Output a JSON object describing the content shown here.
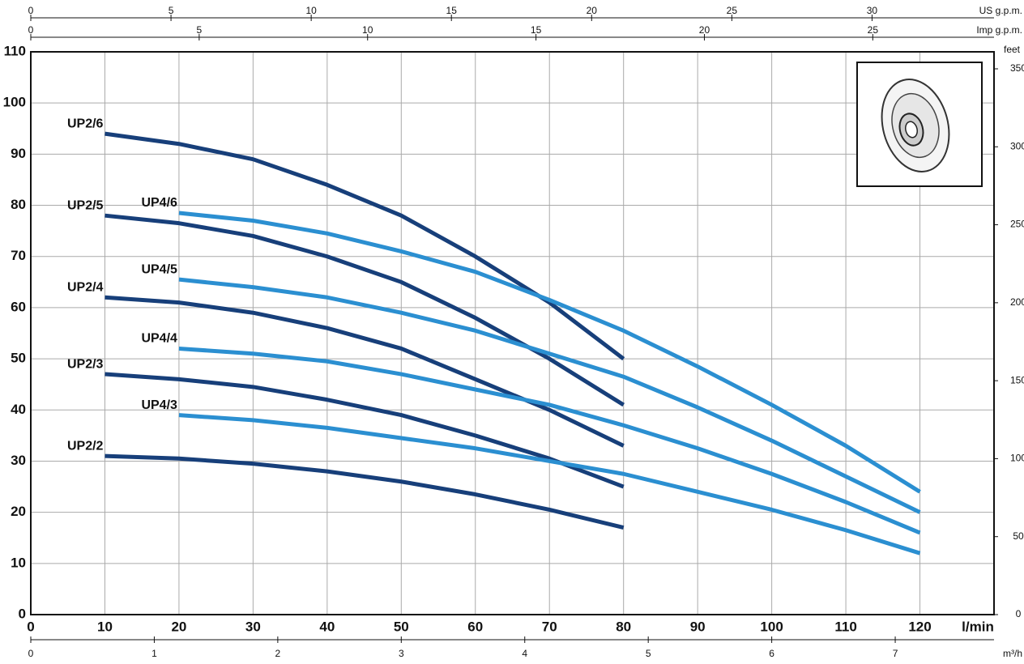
{
  "chart_data": {
    "type": "line",
    "xlabel": "l/min",
    "xlim": [
      0,
      130
    ],
    "xticks": [
      0,
      10,
      20,
      30,
      40,
      50,
      60,
      70,
      80,
      90,
      100,
      110,
      120
    ],
    "ylim": [
      0,
      110
    ],
    "yticks": [
      0,
      10,
      20,
      30,
      40,
      50,
      60,
      70,
      80,
      90,
      100,
      110
    ],
    "grid": true,
    "y2label": "feet",
    "y2lim": [
      0,
      360.9
    ],
    "y2ticks": [
      0,
      50,
      100,
      150,
      200,
      250,
      300,
      350
    ],
    "secondary_axes": [
      {
        "position": "top",
        "label": "US g.p.m.",
        "lim": [
          0,
          34.35
        ],
        "ticks": [
          0,
          5,
          10,
          15,
          20,
          25,
          30
        ]
      },
      {
        "position": "top",
        "label": "Imp g.p.m.",
        "lim": [
          0,
          28.6
        ],
        "ticks": [
          0,
          5,
          10,
          15,
          20,
          25
        ]
      },
      {
        "position": "bottom",
        "label": "m³/h",
        "lim": [
          0,
          7.8
        ],
        "ticks": [
          0,
          1,
          2,
          3,
          4,
          5,
          6,
          7
        ]
      }
    ],
    "series": [
      {
        "name": "UP2/6",
        "color": "#173f7a",
        "x": [
          10,
          20,
          30,
          40,
          50,
          60,
          70,
          80
        ],
        "values": [
          94,
          92,
          89,
          84,
          78,
          70,
          61,
          50
        ]
      },
      {
        "name": "UP2/5",
        "color": "#173f7a",
        "x": [
          10,
          20,
          30,
          40,
          50,
          60,
          70,
          80
        ],
        "values": [
          78,
          76.5,
          74,
          70,
          65,
          58,
          50,
          41
        ]
      },
      {
        "name": "UP2/4",
        "color": "#173f7a",
        "x": [
          10,
          20,
          30,
          40,
          50,
          60,
          70,
          80
        ],
        "values": [
          62,
          61,
          59,
          56,
          52,
          46,
          40,
          33
        ]
      },
      {
        "name": "UP2/3",
        "color": "#173f7a",
        "x": [
          10,
          20,
          30,
          40,
          50,
          60,
          70,
          80
        ],
        "values": [
          47,
          46,
          44.5,
          42,
          39,
          35,
          30.5,
          25
        ]
      },
      {
        "name": "UP2/2",
        "color": "#173f7a",
        "x": [
          10,
          20,
          30,
          40,
          50,
          60,
          70,
          80
        ],
        "values": [
          31,
          30.5,
          29.5,
          28,
          26,
          23.5,
          20.5,
          17
        ]
      },
      {
        "name": "UP4/6",
        "color": "#2b8fd1",
        "x": [
          20,
          30,
          40,
          50,
          60,
          70,
          80,
          90,
          100,
          110,
          120
        ],
        "values": [
          78.5,
          77,
          74.5,
          71,
          67,
          61.5,
          55.5,
          48.5,
          41,
          33,
          24
        ]
      },
      {
        "name": "UP4/5",
        "color": "#2b8fd1",
        "x": [
          20,
          30,
          40,
          50,
          60,
          70,
          80,
          90,
          100,
          110,
          120
        ],
        "values": [
          65.5,
          64,
          62,
          59,
          55.5,
          51,
          46.5,
          40.5,
          34,
          27,
          20
        ]
      },
      {
        "name": "UP4/4",
        "color": "#2b8fd1",
        "x": [
          20,
          30,
          40,
          50,
          60,
          70,
          80,
          90,
          100,
          110,
          120
        ],
        "values": [
          52,
          51,
          49.5,
          47,
          44,
          41,
          37,
          32.5,
          27.5,
          22,
          16
        ]
      },
      {
        "name": "UP4/3",
        "color": "#2b8fd1",
        "x": [
          20,
          30,
          40,
          50,
          60,
          70,
          80,
          90,
          100,
          110,
          120
        ],
        "values": [
          39,
          38,
          36.5,
          34.5,
          32.5,
          30,
          27.5,
          24,
          20.5,
          16.5,
          12
        ]
      }
    ]
  }
}
